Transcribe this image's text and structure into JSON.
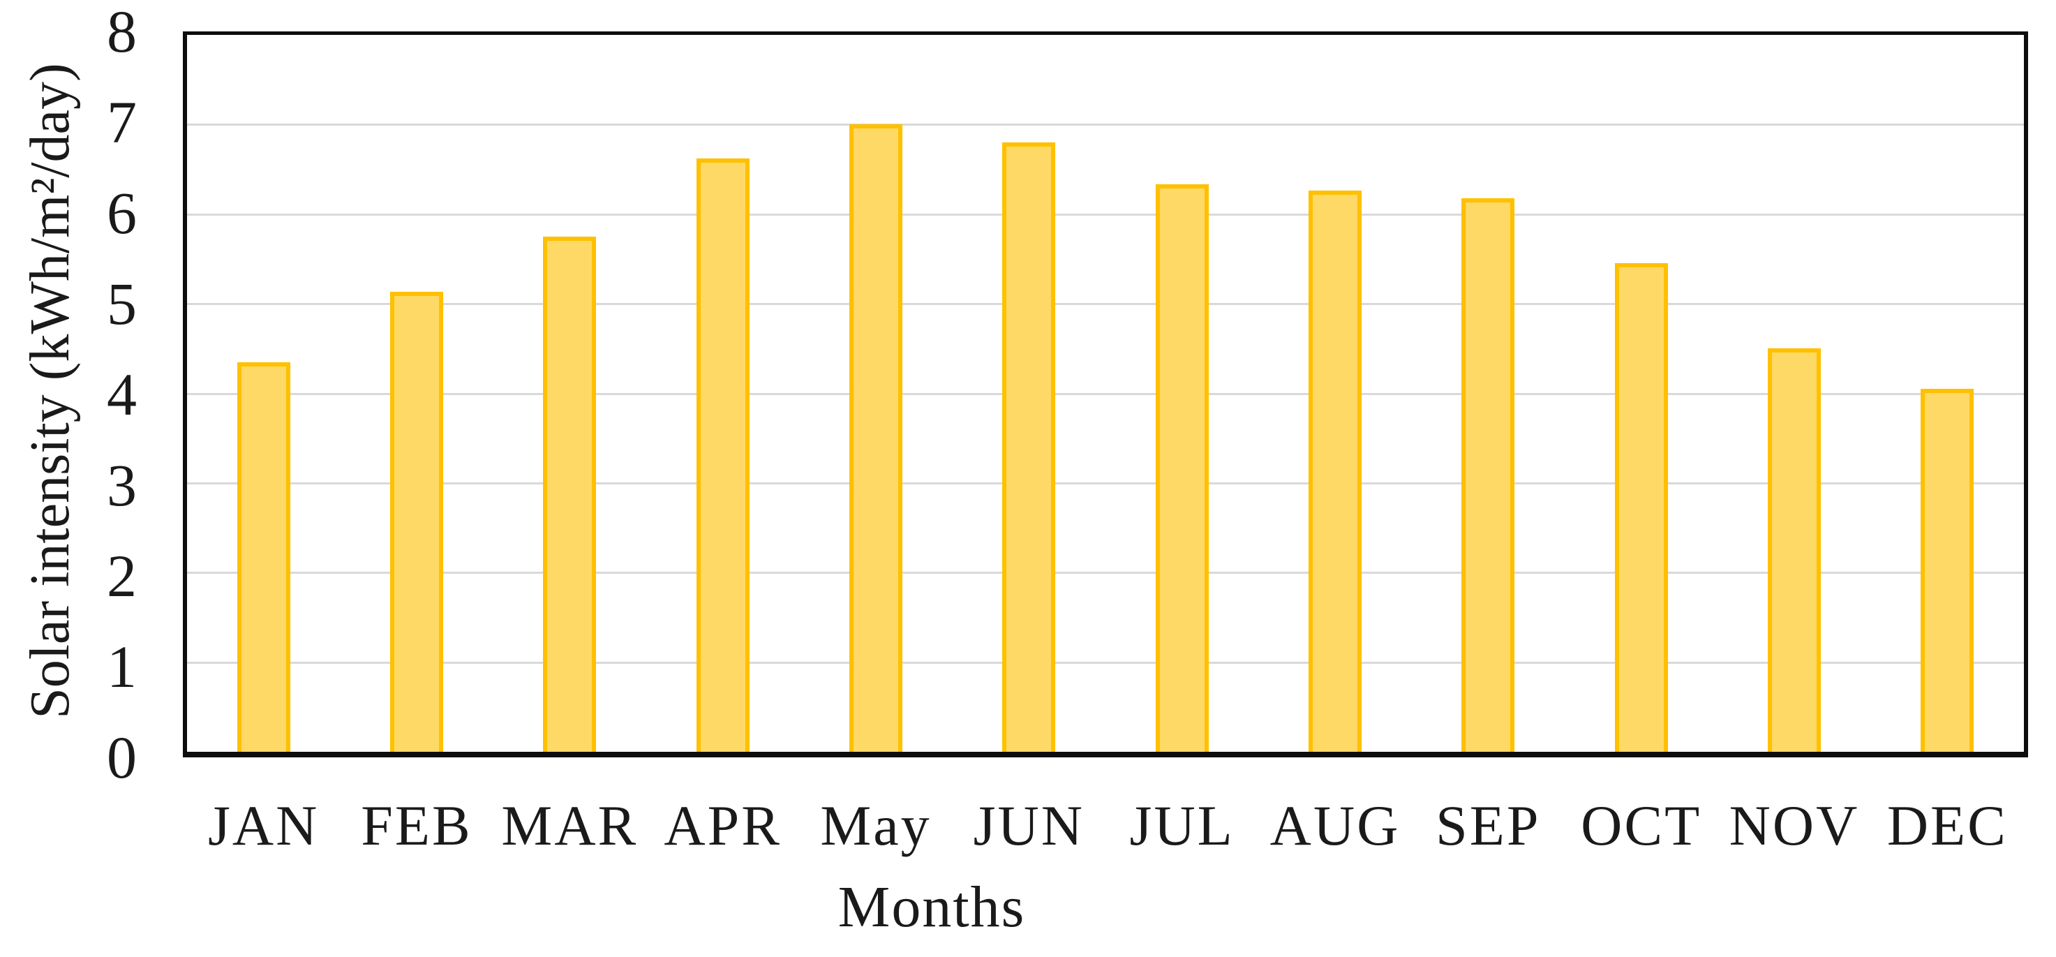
{
  "chart_data": {
    "type": "bar",
    "title": "",
    "categories": [
      "JAN",
      "FEB",
      "MAR",
      "APR",
      "May",
      "JUN",
      "JUL",
      "AUG",
      "SEP",
      "OCT",
      "NOV",
      "DEC"
    ],
    "values": [
      4.35,
      5.13,
      5.75,
      6.62,
      7.0,
      6.8,
      6.33,
      6.26,
      6.18,
      5.45,
      4.5,
      4.05
    ],
    "xlabel": "Months",
    "ylabel": "Solar intensity (kWh/m²/day)",
    "ylim": [
      0,
      8
    ],
    "yticks": [
      0,
      1,
      2,
      3,
      4,
      5,
      6,
      7,
      8
    ],
    "grid": true,
    "legend": "none",
    "colors": {
      "bar_fill": "#FFD966",
      "bar_border": "#FFC000",
      "gridline": "#D9D9D9",
      "axis_box": "#0D0D0D",
      "text": "#1A1A1A",
      "background": "#FFFFFF"
    }
  }
}
